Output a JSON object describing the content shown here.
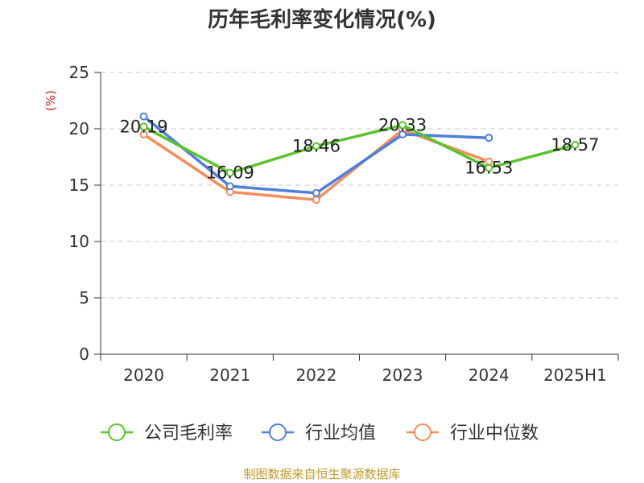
{
  "chart_data": {
    "type": "line",
    "title": "历年毛利率变化情况(%)",
    "ylabel": "(%)",
    "xlabel": "",
    "categories": [
      "2020",
      "2021",
      "2022",
      "2023",
      "2024",
      "2025H1"
    ],
    "ylim": [
      0,
      25
    ],
    "yticks": [
      0,
      5,
      10,
      15,
      20,
      25
    ],
    "grid": true,
    "legend_position": "bottom",
    "series": [
      {
        "name": "公司毛利率",
        "color": "#5cc22e",
        "values": [
          20.19,
          16.09,
          18.46,
          20.33,
          16.53,
          18.57
        ],
        "labels": [
          "20.19",
          "16.09",
          "18.46",
          "20.33",
          "16.53",
          "18.57"
        ]
      },
      {
        "name": "行业均值",
        "color": "#4e7fdc",
        "values": [
          21.1,
          14.9,
          14.3,
          19.5,
          19.2,
          null
        ]
      },
      {
        "name": "行业中位数",
        "color": "#f58d5a",
        "values": [
          19.5,
          14.4,
          13.7,
          19.9,
          17.1,
          null
        ]
      }
    ]
  },
  "source": "制图数据来自恒生聚源数据库"
}
